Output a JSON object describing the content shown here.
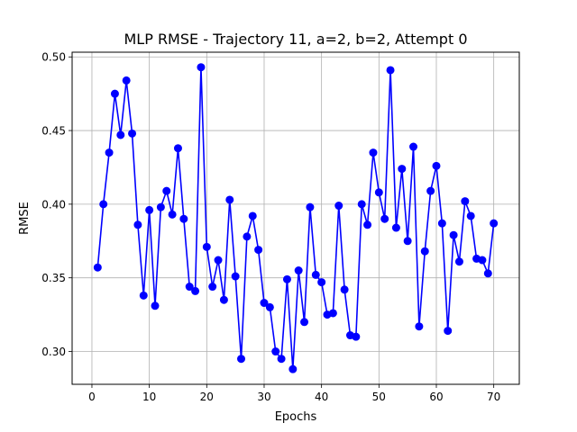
{
  "chart_data": {
    "type": "line",
    "title": "MLP RMSE - Trajectory 11, a=2, b=2, Attempt 0",
    "xlabel": "Epochs",
    "ylabel": "RMSE",
    "xlim": [
      -3.45,
      74.45
    ],
    "ylim": [
      0.2777,
      0.5032
    ],
    "x_ticks": [
      0,
      10,
      20,
      30,
      40,
      50,
      60,
      70
    ],
    "y_ticks": [
      0.3,
      0.35,
      0.4,
      0.45,
      0.5
    ],
    "x_tick_labels": [
      "0",
      "10",
      "20",
      "30",
      "40",
      "50",
      "60",
      "70"
    ],
    "y_tick_labels": [
      "0.30",
      "0.35",
      "0.40",
      "0.45",
      "0.50"
    ],
    "grid": true,
    "color": "#0000ff",
    "marker": "circle",
    "x": [
      1,
      2,
      3,
      4,
      5,
      6,
      7,
      8,
      9,
      10,
      11,
      12,
      13,
      14,
      15,
      16,
      17,
      18,
      19,
      20,
      21,
      22,
      23,
      24,
      25,
      26,
      27,
      28,
      29,
      30,
      31,
      32,
      33,
      34,
      35,
      36,
      37,
      38,
      39,
      40,
      41,
      42,
      43,
      44,
      45,
      46,
      47,
      48,
      49,
      50,
      51,
      52,
      53,
      54,
      55,
      56,
      57,
      58,
      59,
      60,
      61,
      62,
      63,
      64,
      65,
      66,
      67,
      68,
      69,
      70
    ],
    "y": [
      0.357,
      0.4,
      0.435,
      0.475,
      0.447,
      0.484,
      0.448,
      0.386,
      0.338,
      0.396,
      0.331,
      0.398,
      0.409,
      0.393,
      0.438,
      0.39,
      0.344,
      0.341,
      0.493,
      0.371,
      0.344,
      0.362,
      0.335,
      0.403,
      0.351,
      0.295,
      0.378,
      0.392,
      0.369,
      0.333,
      0.33,
      0.3,
      0.295,
      0.349,
      0.288,
      0.355,
      0.32,
      0.398,
      0.352,
      0.347,
      0.325,
      0.326,
      0.399,
      0.342,
      0.311,
      0.31,
      0.4,
      0.386,
      0.435,
      0.408,
      0.39,
      0.491,
      0.384,
      0.424,
      0.375,
      0.439,
      0.317,
      0.368,
      0.409,
      0.426,
      0.387,
      0.314,
      0.379,
      0.361,
      0.402,
      0.392,
      0.363,
      0.362,
      0.353,
      0.387
    ]
  }
}
